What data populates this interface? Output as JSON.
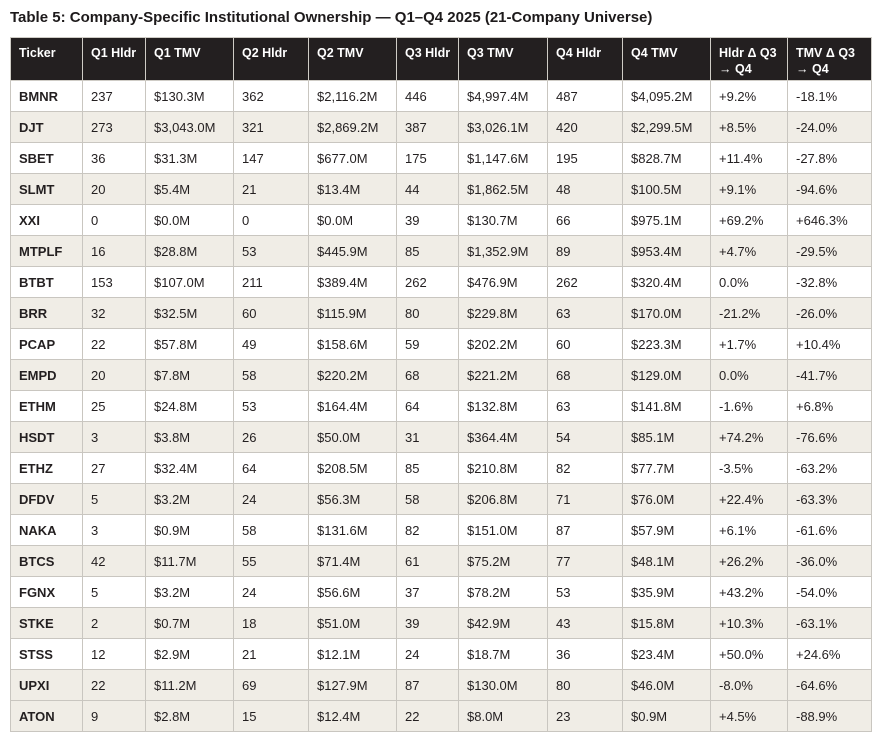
{
  "title": "Table 5: Company-Specific Institutional Ownership — Q1–Q4 2025 (21-Company Universe)",
  "colors": {
    "header_bg": "#231f20",
    "header_text": "#ffffff",
    "row_alt_bg": "#f0ede6",
    "border": "#c9c6c0"
  },
  "table": {
    "columns": [
      "Ticker",
      "Q1 Hldr",
      "Q1 TMV",
      "Q2 Hldr",
      "Q2 TMV",
      "Q3 Hldr",
      "Q3 TMV",
      "Q4 Hldr",
      "Q4 TMV",
      "Hldr Δ Q3 → Q4",
      "TMV Δ Q3 → Q4"
    ],
    "rows": [
      [
        "BMNR",
        "237",
        "$130.3M",
        "362",
        "$2,116.2M",
        "446",
        "$4,997.4M",
        "487",
        "$4,095.2M",
        "+9.2%",
        "-18.1%"
      ],
      [
        "DJT",
        "273",
        "$3,043.0M",
        "321",
        "$2,869.2M",
        "387",
        "$3,026.1M",
        "420",
        "$2,299.5M",
        "+8.5%",
        "-24.0%"
      ],
      [
        "SBET",
        "36",
        "$31.3M",
        "147",
        "$677.0M",
        "175",
        "$1,147.6M",
        "195",
        "$828.7M",
        "+11.4%",
        "-27.8%"
      ],
      [
        "SLMT",
        "20",
        "$5.4M",
        "21",
        "$13.4M",
        "44",
        "$1,862.5M",
        "48",
        "$100.5M",
        "+9.1%",
        "-94.6%"
      ],
      [
        "XXI",
        "0",
        "$0.0M",
        "0",
        "$0.0M",
        "39",
        "$130.7M",
        "66",
        "$975.1M",
        "+69.2%",
        "+646.3%"
      ],
      [
        "MTPLF",
        "16",
        "$28.8M",
        "53",
        "$445.9M",
        "85",
        "$1,352.9M",
        "89",
        "$953.4M",
        "+4.7%",
        "-29.5%"
      ],
      [
        "BTBT",
        "153",
        "$107.0M",
        "211",
        "$389.4M",
        "262",
        "$476.9M",
        "262",
        "$320.4M",
        "0.0%",
        "-32.8%"
      ],
      [
        "BRR",
        "32",
        "$32.5M",
        "60",
        "$115.9M",
        "80",
        "$229.8M",
        "63",
        "$170.0M",
        "-21.2%",
        "-26.0%"
      ],
      [
        "PCAP",
        "22",
        "$57.8M",
        "49",
        "$158.6M",
        "59",
        "$202.2M",
        "60",
        "$223.3M",
        "+1.7%",
        "+10.4%"
      ],
      [
        "EMPD",
        "20",
        "$7.8M",
        "58",
        "$220.2M",
        "68",
        "$221.2M",
        "68",
        "$129.0M",
        "0.0%",
        "-41.7%"
      ],
      [
        "ETHM",
        "25",
        "$24.8M",
        "53",
        "$164.4M",
        "64",
        "$132.8M",
        "63",
        "$141.8M",
        "-1.6%",
        "+6.8%"
      ],
      [
        "HSDT",
        "3",
        "$3.8M",
        "26",
        "$50.0M",
        "31",
        "$364.4M",
        "54",
        "$85.1M",
        "+74.2%",
        "-76.6%"
      ],
      [
        "ETHZ",
        "27",
        "$32.4M",
        "64",
        "$208.5M",
        "85",
        "$210.8M",
        "82",
        "$77.7M",
        "-3.5%",
        "-63.2%"
      ],
      [
        "DFDV",
        "5",
        "$3.2M",
        "24",
        "$56.3M",
        "58",
        "$206.8M",
        "71",
        "$76.0M",
        "+22.4%",
        "-63.3%"
      ],
      [
        "NAKA",
        "3",
        "$0.9M",
        "58",
        "$131.6M",
        "82",
        "$151.0M",
        "87",
        "$57.9M",
        "+6.1%",
        "-61.6%"
      ],
      [
        "BTCS",
        "42",
        "$11.7M",
        "55",
        "$71.4M",
        "61",
        "$75.2M",
        "77",
        "$48.1M",
        "+26.2%",
        "-36.0%"
      ],
      [
        "FGNX",
        "5",
        "$3.2M",
        "24",
        "$56.6M",
        "37",
        "$78.2M",
        "53",
        "$35.9M",
        "+43.2%",
        "-54.0%"
      ],
      [
        "STKE",
        "2",
        "$0.7M",
        "18",
        "$51.0M",
        "39",
        "$42.9M",
        "43",
        "$15.8M",
        "+10.3%",
        "-63.1%"
      ],
      [
        "STSS",
        "12",
        "$2.9M",
        "21",
        "$12.1M",
        "24",
        "$18.7M",
        "36",
        "$23.4M",
        "+50.0%",
        "+24.6%"
      ],
      [
        "UPXI",
        "22",
        "$11.2M",
        "69",
        "$127.9M",
        "87",
        "$130.0M",
        "80",
        "$46.0M",
        "-8.0%",
        "-64.6%"
      ],
      [
        "ATON",
        "9",
        "$2.8M",
        "15",
        "$12.4M",
        "22",
        "$8.0M",
        "23",
        "$0.9M",
        "+4.5%",
        "-88.9%"
      ]
    ],
    "shaded_row_indexes": [
      1,
      3,
      5,
      7,
      9,
      11,
      13,
      15,
      17,
      19,
      20
    ]
  }
}
